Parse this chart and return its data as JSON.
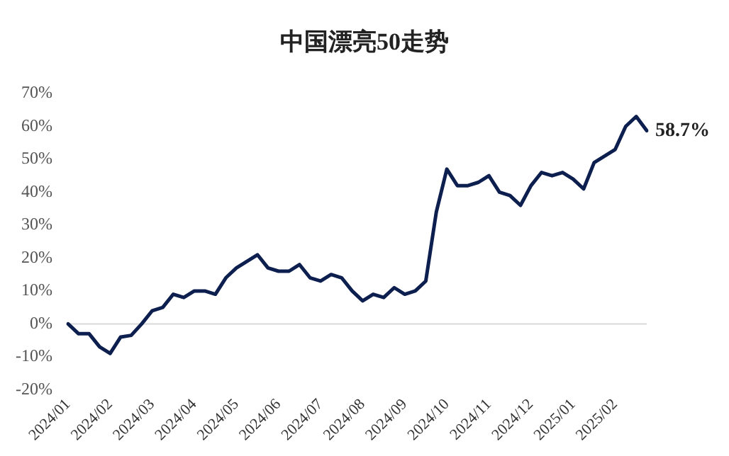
{
  "chart_data": {
    "type": "line",
    "title": "中国漂亮50走势",
    "categories": [
      "2024/01",
      null,
      null,
      null,
      "2024/02",
      null,
      null,
      null,
      "2024/03",
      null,
      null,
      null,
      "2024/04",
      null,
      null,
      null,
      "2024/05",
      null,
      null,
      null,
      "2024/06",
      null,
      null,
      null,
      "2024/07",
      null,
      null,
      null,
      "2024/08",
      null,
      null,
      null,
      "2024/09",
      null,
      null,
      null,
      "2024/10",
      null,
      null,
      null,
      "2024/11",
      null,
      null,
      null,
      "2024/12",
      null,
      null,
      null,
      "2025/01",
      null,
      null,
      null,
      "2025/02",
      null,
      null,
      null
    ],
    "series": [
      {
        "color": "#0d1f4f",
        "values": [
          0,
          -3,
          -3,
          -7,
          -9,
          -4,
          -3.5,
          0,
          4,
          5,
          9,
          8,
          10,
          10,
          9,
          14,
          17,
          19,
          21,
          17,
          16,
          16,
          18,
          14,
          13,
          15,
          14,
          10,
          7,
          9,
          8,
          11,
          9,
          10,
          13,
          34,
          47,
          42,
          42,
          43,
          45,
          40,
          39,
          36,
          42,
          46,
          45,
          46,
          44,
          41,
          49,
          51,
          53,
          60,
          63,
          58.7
        ]
      }
    ],
    "ylim": [
      -20,
      70
    ],
    "yticks": [
      {
        "value": -20,
        "label": "-20%"
      },
      {
        "value": -10,
        "label": "-10%"
      },
      {
        "value": 0,
        "label": "0%"
      },
      {
        "value": 10,
        "label": "10%"
      },
      {
        "value": 20,
        "label": "20%"
      },
      {
        "value": 30,
        "label": "30%"
      },
      {
        "value": 40,
        "label": "40%"
      },
      {
        "value": 50,
        "label": "50%"
      },
      {
        "value": 60,
        "label": "60%"
      },
      {
        "value": 70,
        "label": "70%"
      }
    ],
    "ref_lines": [
      {
        "axis": "y",
        "value": 0,
        "color": "#d9d9d9"
      }
    ],
    "annotations": [
      "58.7%"
    ],
    "grid": false,
    "legend": false,
    "marker": "none",
    "line_style": "solid"
  }
}
